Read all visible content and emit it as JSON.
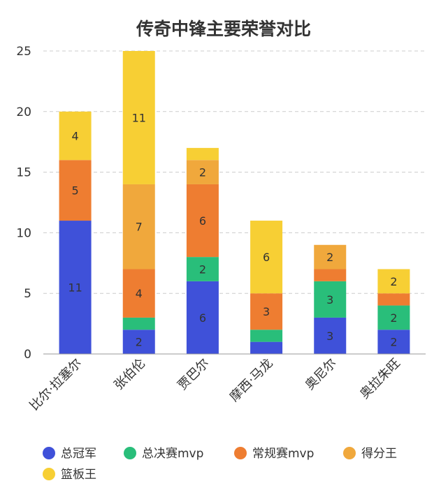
{
  "chart_data": {
    "type": "bar",
    "stacked": true,
    "title": "传奇中锋主要荣誉对比",
    "categories": [
      "比尔·拉塞尔",
      "张伯伦",
      "贾巴尔",
      "摩西·马龙",
      "奥尼尔",
      "奥拉朱旺"
    ],
    "series": [
      {
        "name": "总冠军",
        "color": "#3f51d9",
        "values": [
          11,
          2,
          6,
          1,
          3,
          2
        ]
      },
      {
        "name": "总决赛mvp",
        "color": "#29be7a",
        "values": [
          0,
          1,
          2,
          1,
          3,
          2
        ]
      },
      {
        "name": "常规赛mvp",
        "color": "#ee7d31",
        "values": [
          5,
          4,
          6,
          3,
          1,
          1
        ]
      },
      {
        "name": "得分王",
        "color": "#f0a83c",
        "values": [
          0,
          7,
          2,
          0,
          2,
          0
        ]
      },
      {
        "name": "篮板王",
        "color": "#f7cf34",
        "values": [
          4,
          11,
          1,
          6,
          0,
          2
        ]
      }
    ],
    "data_labels": [
      {
        "category": 0,
        "series": 0,
        "text": "11"
      },
      {
        "category": 0,
        "series": 2,
        "text": "5"
      },
      {
        "category": 0,
        "series": 4,
        "text": "4"
      },
      {
        "category": 1,
        "series": 0,
        "text": "2"
      },
      {
        "category": 1,
        "series": 2,
        "text": "4"
      },
      {
        "category": 1,
        "series": 3,
        "text": "7"
      },
      {
        "category": 1,
        "series": 4,
        "text": "11"
      },
      {
        "category": 2,
        "series": 0,
        "text": "6"
      },
      {
        "category": 2,
        "series": 1,
        "text": "2"
      },
      {
        "category": 2,
        "series": 2,
        "text": "6"
      },
      {
        "category": 2,
        "series": 3,
        "text": "2"
      },
      {
        "category": 3,
        "series": 2,
        "text": "3"
      },
      {
        "category": 3,
        "series": 4,
        "text": "6"
      },
      {
        "category": 4,
        "series": 0,
        "text": "3"
      },
      {
        "category": 4,
        "series": 1,
        "text": "3"
      },
      {
        "category": 4,
        "series": 3,
        "text": "2"
      },
      {
        "category": 5,
        "series": 0,
        "text": "2"
      },
      {
        "category": 5,
        "series": 1,
        "text": "2"
      },
      {
        "category": 5,
        "series": 4,
        "text": "2"
      }
    ],
    "ylim": [
      0,
      25
    ],
    "yticks": [
      "0",
      "5",
      "10",
      "15",
      "20",
      "25"
    ],
    "ytick_values": [
      0,
      5,
      10,
      15,
      20,
      25
    ],
    "grid": true,
    "legend_position": "bottom-left"
  }
}
